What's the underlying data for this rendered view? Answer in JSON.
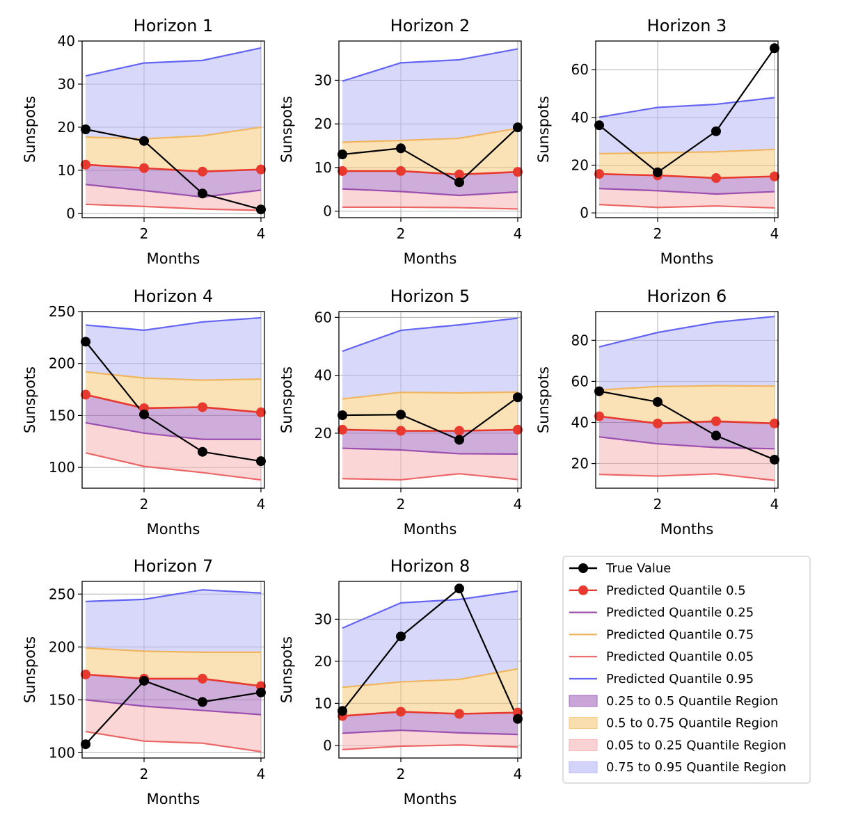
{
  "figure": {
    "colors": {
      "true": "#000000",
      "q50": "#e8392e",
      "q25": "#9b4fae",
      "q75": "#f0b55e",
      "q05": "#ec6666",
      "q95": "#6464f4",
      "region_25_50": "#a569bd",
      "region_50_75": "#f5c97a",
      "region_05_25": "#f5b5b5",
      "region_75_95": "#b8b8f8",
      "grid": "#b0b0b0"
    },
    "legend": {
      "placement": "bottom-right cell",
      "entries": [
        {
          "key": "true",
          "label": "True Value",
          "kind": "line-marker"
        },
        {
          "key": "q50",
          "label": "Predicted Quantile 0.5",
          "kind": "line-marker"
        },
        {
          "key": "q25",
          "label": "Predicted Quantile 0.25",
          "kind": "line"
        },
        {
          "key": "q75",
          "label": "Predicted Quantile 0.75",
          "kind": "line"
        },
        {
          "key": "q05",
          "label": "Predicted Quantile 0.05",
          "kind": "line"
        },
        {
          "key": "q95",
          "label": "Predicted Quantile 0.95",
          "kind": "line"
        },
        {
          "key": "region_25_50",
          "label": "0.25 to 0.5 Quantile Region",
          "kind": "patch"
        },
        {
          "key": "region_50_75",
          "label": "0.5 to 0.75 Quantile Region",
          "kind": "patch"
        },
        {
          "key": "region_05_25",
          "label": "0.05 to 0.25 Quantile Region",
          "kind": "patch"
        },
        {
          "key": "region_75_95",
          "label": "0.75 to 0.95 Quantile Region",
          "kind": "patch"
        }
      ]
    }
  },
  "chart_data": [
    {
      "type": "line",
      "title": "Horizon 1",
      "xlabel": "Months",
      "ylabel": "Sunspots",
      "x": [
        1,
        2,
        3,
        4
      ],
      "xlim": [
        0.94,
        4.06
      ],
      "ylim": [
        -1,
        40
      ],
      "xticks": [
        2,
        4
      ],
      "yticks": [
        0,
        10,
        20,
        30,
        40
      ],
      "grid": true,
      "series": [
        {
          "name": "True Value",
          "key": "true",
          "values": [
            19.5,
            16.8,
            4.6,
            0.9
          ]
        },
        {
          "name": "Predicted Quantile 0.5",
          "key": "q50",
          "values": [
            11.3,
            10.5,
            9.7,
            10.2
          ]
        },
        {
          "name": "Predicted Quantile 0.25",
          "key": "q25",
          "values": [
            6.7,
            5.3,
            3.8,
            5.4
          ]
        },
        {
          "name": "Predicted Quantile 0.75",
          "key": "q75",
          "values": [
            17.7,
            17.3,
            18.0,
            20.0
          ]
        },
        {
          "name": "Predicted Quantile 0.05",
          "key": "q05",
          "values": [
            2.1,
            1.6,
            1.0,
            0.7
          ]
        },
        {
          "name": "Predicted Quantile 0.95",
          "key": "q95",
          "values": [
            31.9,
            34.9,
            35.5,
            38.4
          ]
        }
      ]
    },
    {
      "type": "line",
      "title": "Horizon 2",
      "xlabel": "Months",
      "ylabel": "Sunspots",
      "x": [
        1,
        2,
        3,
        4
      ],
      "xlim": [
        0.94,
        4.06
      ],
      "ylim": [
        -1.5,
        39
      ],
      "xticks": [
        2,
        4
      ],
      "yticks": [
        0,
        10,
        20,
        30
      ],
      "grid": true,
      "series": [
        {
          "name": "True Value",
          "key": "true",
          "values": [
            13.0,
            14.4,
            6.6,
            19.2
          ]
        },
        {
          "name": "Predicted Quantile 0.5",
          "key": "q50",
          "values": [
            9.2,
            9.2,
            8.4,
            9.0
          ]
        },
        {
          "name": "Predicted Quantile 0.25",
          "key": "q25",
          "values": [
            5.1,
            4.5,
            3.6,
            4.4
          ]
        },
        {
          "name": "Predicted Quantile 0.75",
          "key": "q75",
          "values": [
            15.8,
            16.2,
            16.7,
            19.0
          ]
        },
        {
          "name": "Predicted Quantile 0.05",
          "key": "q05",
          "values": [
            0.9,
            0.9,
            0.8,
            0.5
          ]
        },
        {
          "name": "Predicted Quantile 0.95",
          "key": "q95",
          "values": [
            29.8,
            34.0,
            34.7,
            37.2
          ]
        }
      ]
    },
    {
      "type": "line",
      "title": "Horizon 3",
      "xlabel": "Months",
      "ylabel": "Sunspots",
      "x": [
        1,
        2,
        3,
        4
      ],
      "xlim": [
        0.94,
        4.06
      ],
      "ylim": [
        -2,
        72
      ],
      "xticks": [
        2,
        4
      ],
      "yticks": [
        0,
        20,
        40,
        60
      ],
      "grid": true,
      "series": [
        {
          "name": "True Value",
          "key": "true",
          "values": [
            36.7,
            17.0,
            34.2,
            69.0
          ]
        },
        {
          "name": "Predicted Quantile 0.5",
          "key": "q50",
          "values": [
            16.3,
            15.7,
            14.6,
            15.3
          ]
        },
        {
          "name": "Predicted Quantile 0.25",
          "key": "q25",
          "values": [
            10.2,
            9.3,
            7.9,
            8.9
          ]
        },
        {
          "name": "Predicted Quantile 0.75",
          "key": "q75",
          "values": [
            24.8,
            25.2,
            25.6,
            26.6
          ]
        },
        {
          "name": "Predicted Quantile 0.05",
          "key": "q05",
          "values": [
            3.5,
            2.3,
            2.9,
            2.1
          ]
        },
        {
          "name": "Predicted Quantile 0.95",
          "key": "q95",
          "values": [
            40.1,
            44.2,
            45.5,
            48.3
          ]
        }
      ]
    },
    {
      "type": "line",
      "title": "Horizon 4",
      "xlabel": "Months",
      "ylabel": "Sunspots",
      "x": [
        1,
        2,
        3,
        4
      ],
      "xlim": [
        0.94,
        4.06
      ],
      "ylim": [
        80,
        250
      ],
      "xticks": [
        2,
        4
      ],
      "yticks": [
        100,
        150,
        200,
        250
      ],
      "grid": true,
      "series": [
        {
          "name": "True Value",
          "key": "true",
          "values": [
            221,
            151,
            115,
            106
          ]
        },
        {
          "name": "Predicted Quantile 0.5",
          "key": "q50",
          "values": [
            170,
            157,
            158,
            153
          ]
        },
        {
          "name": "Predicted Quantile 0.25",
          "key": "q25",
          "values": [
            143,
            133,
            127,
            127
          ]
        },
        {
          "name": "Predicted Quantile 0.75",
          "key": "q75",
          "values": [
            192,
            186,
            184,
            185
          ]
        },
        {
          "name": "Predicted Quantile 0.05",
          "key": "q05",
          "values": [
            114,
            101,
            95,
            88
          ]
        },
        {
          "name": "Predicted Quantile 0.95",
          "key": "q95",
          "values": [
            237,
            232,
            240,
            244
          ]
        }
      ]
    },
    {
      "type": "line",
      "title": "Horizon 5",
      "xlabel": "Months",
      "ylabel": "Sunspots",
      "x": [
        1,
        2,
        3,
        4
      ],
      "xlim": [
        0.94,
        4.06
      ],
      "ylim": [
        1,
        62
      ],
      "xticks": [
        2,
        4
      ],
      "yticks": [
        20,
        40,
        60
      ],
      "grid": true,
      "series": [
        {
          "name": "True Value",
          "key": "true",
          "values": [
            26.2,
            26.4,
            17.7,
            32.4
          ]
        },
        {
          "name": "Predicted Quantile 0.5",
          "key": "q50",
          "values": [
            21.2,
            20.8,
            20.8,
            21.2
          ]
        },
        {
          "name": "Predicted Quantile 0.25",
          "key": "q25",
          "values": [
            14.8,
            14.2,
            12.9,
            12.8
          ]
        },
        {
          "name": "Predicted Quantile 0.75",
          "key": "q75",
          "values": [
            31.8,
            34.1,
            33.9,
            34.2
          ]
        },
        {
          "name": "Predicted Quantile 0.05",
          "key": "q05",
          "values": [
            4.3,
            3.9,
            6.0,
            4.0
          ]
        },
        {
          "name": "Predicted Quantile 0.95",
          "key": "q95",
          "values": [
            48.3,
            55.5,
            57.4,
            59.7
          ]
        }
      ]
    },
    {
      "type": "line",
      "title": "Horizon 6",
      "xlabel": "Months",
      "ylabel": "Sunspots",
      "x": [
        1,
        2,
        3,
        4
      ],
      "xlim": [
        0.94,
        4.06
      ],
      "ylim": [
        8,
        94
      ],
      "xticks": [
        2,
        4
      ],
      "yticks": [
        20,
        40,
        60,
        80
      ],
      "grid": true,
      "series": [
        {
          "name": "True Value",
          "key": "true",
          "values": [
            55.2,
            50.0,
            33.6,
            21.9
          ]
        },
        {
          "name": "Predicted Quantile 0.5",
          "key": "q50",
          "values": [
            43.0,
            39.5,
            40.6,
            39.5
          ]
        },
        {
          "name": "Predicted Quantile 0.25",
          "key": "q25",
          "values": [
            33.0,
            29.6,
            27.8,
            27.2
          ]
        },
        {
          "name": "Predicted Quantile 0.75",
          "key": "q75",
          "values": [
            55.8,
            57.5,
            57.9,
            57.7
          ]
        },
        {
          "name": "Predicted Quantile 0.05",
          "key": "q05",
          "values": [
            14.7,
            13.9,
            15.0,
            11.8
          ]
        },
        {
          "name": "Predicted Quantile 0.95",
          "key": "q95",
          "values": [
            76.8,
            83.8,
            88.8,
            91.6
          ]
        }
      ]
    },
    {
      "type": "line",
      "title": "Horizon 7",
      "xlabel": "Months",
      "ylabel": "Sunspots",
      "x": [
        1,
        2,
        3,
        4
      ],
      "xlim": [
        0.94,
        4.06
      ],
      "ylim": [
        95,
        262
      ],
      "xticks": [
        2,
        4
      ],
      "yticks": [
        100,
        150,
        200,
        250
      ],
      "grid": true,
      "series": [
        {
          "name": "True Value",
          "key": "true",
          "values": [
            108,
            168,
            148,
            157
          ]
        },
        {
          "name": "Predicted Quantile 0.5",
          "key": "q50",
          "values": [
            174,
            170,
            170,
            163
          ]
        },
        {
          "name": "Predicted Quantile 0.25",
          "key": "q25",
          "values": [
            150,
            144,
            140,
            136
          ]
        },
        {
          "name": "Predicted Quantile 0.75",
          "key": "q75",
          "values": [
            199,
            196,
            195,
            195
          ]
        },
        {
          "name": "Predicted Quantile 0.05",
          "key": "q05",
          "values": [
            120,
            111,
            109,
            101
          ]
        },
        {
          "name": "Predicted Quantile 0.95",
          "key": "q95",
          "values": [
            243,
            245,
            254,
            251
          ]
        }
      ]
    },
    {
      "type": "line",
      "title": "Horizon 8",
      "xlabel": "Months",
      "ylabel": "Sunspots",
      "x": [
        1,
        2,
        3,
        4
      ],
      "xlim": [
        0.94,
        4.06
      ],
      "ylim": [
        -3,
        39
      ],
      "xticks": [
        2,
        4
      ],
      "yticks": [
        0,
        10,
        20,
        30
      ],
      "grid": true,
      "series": [
        {
          "name": "True Value",
          "key": "true",
          "values": [
            8.2,
            25.9,
            37.3,
            6.3
          ]
        },
        {
          "name": "Predicted Quantile 0.5",
          "key": "q50",
          "values": [
            7.0,
            8.0,
            7.5,
            7.8
          ]
        },
        {
          "name": "Predicted Quantile 0.25",
          "key": "q25",
          "values": [
            2.9,
            3.6,
            3.0,
            2.6
          ]
        },
        {
          "name": "Predicted Quantile 0.75",
          "key": "q75",
          "values": [
            13.8,
            15.1,
            15.7,
            18.2
          ]
        },
        {
          "name": "Predicted Quantile 0.05",
          "key": "q05",
          "values": [
            -1.0,
            -0.2,
            0.1,
            -0.4
          ]
        },
        {
          "name": "Predicted Quantile 0.95",
          "key": "q95",
          "values": [
            27.9,
            33.9,
            34.7,
            36.7
          ]
        }
      ]
    }
  ]
}
